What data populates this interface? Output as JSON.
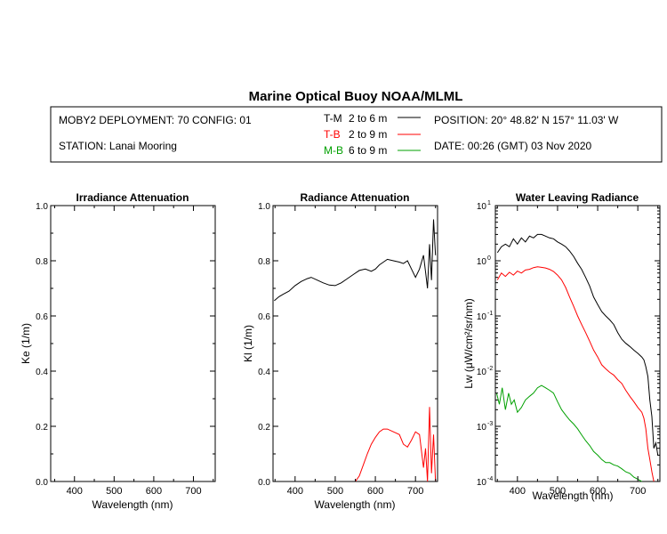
{
  "title": "Marine Optical Buoy NOAA/MLML",
  "header": {
    "deployment": "MOBY2 DEPLOYMENT: 70 CONFIG: 01",
    "station": "STATION: Lanai Mooring",
    "position": "POSITION: 20° 48.82' N   157° 11.03' W",
    "date": "DATE: 00:26 (GMT) 03 Nov 2020",
    "legend": [
      {
        "code": "T-M",
        "range": "2 to 6  m",
        "color": "#000000"
      },
      {
        "code": "T-B",
        "range": "2 to 9  m",
        "color": "#ff0000"
      },
      {
        "code": "M-B",
        "range": "6 to 9  m",
        "color": "#00a000"
      }
    ]
  },
  "chart_data": [
    {
      "type": "line",
      "title": "Irradiance Attenuation",
      "xlabel": "Wavelength (nm)",
      "ylabel": "Ke  (1/m)",
      "xlim": [
        340,
        755
      ],
      "ylim": [
        0.0,
        1.0
      ],
      "xticks": [
        "400",
        "500",
        "600",
        "700"
      ],
      "yticks": [
        "0.0",
        "0.2",
        "0.4",
        "0.6",
        "0.8",
        "1.0"
      ],
      "series": []
    },
    {
      "type": "line",
      "title": "Radiance Attenuation",
      "xlabel": "Wavelength (nm)",
      "ylabel": "Kl  (1/m)",
      "xlim": [
        345,
        755
      ],
      "ylim": [
        0.0,
        1.0
      ],
      "xticks": [
        "400",
        "500",
        "600",
        "700"
      ],
      "yticks": [
        "0.0",
        "0.2",
        "0.4",
        "0.6",
        "0.8",
        "1.0"
      ],
      "series": [
        {
          "code": "T-M",
          "color": "#000000",
          "x": [
            348,
            360,
            372,
            385,
            400,
            415,
            430,
            440,
            455,
            470,
            485,
            500,
            515,
            530,
            545,
            560,
            575,
            590,
            600,
            610,
            620,
            630,
            645,
            660,
            670,
            680,
            690,
            700,
            710,
            720,
            725,
            730,
            735,
            740,
            745,
            750
          ],
          "y": [
            0.655,
            0.67,
            0.68,
            0.69,
            0.71,
            0.725,
            0.735,
            0.74,
            0.73,
            0.72,
            0.712,
            0.71,
            0.72,
            0.735,
            0.75,
            0.765,
            0.77,
            0.762,
            0.77,
            0.785,
            0.795,
            0.805,
            0.8,
            0.795,
            0.79,
            0.8,
            0.77,
            0.74,
            0.77,
            0.82,
            0.76,
            0.7,
            0.86,
            0.73,
            0.95,
            0.82
          ]
        },
        {
          "code": "T-B",
          "color": "#ff0000",
          "x": [
            550,
            560,
            570,
            580,
            590,
            600,
            610,
            620,
            630,
            645,
            660,
            670,
            680,
            690,
            700,
            710,
            720,
            725,
            730,
            735,
            740,
            745,
            750
          ],
          "y": [
            0.0,
            0.02,
            0.06,
            0.1,
            0.135,
            0.16,
            0.18,
            0.19,
            0.19,
            0.18,
            0.17,
            0.135,
            0.125,
            0.15,
            0.18,
            0.17,
            0.05,
            0.12,
            0.0,
            0.27,
            0.03,
            0.17,
            0.0
          ]
        }
      ]
    },
    {
      "type": "line",
      "title": "Water Leaving Radiance",
      "xlabel": "Wavelength (nm)",
      "ylabel": "Lw  (μW/cm²/sr/nm)",
      "xlim": [
        345,
        755
      ],
      "ylim": [
        0.0001,
        10
      ],
      "yscale": "log",
      "xticks": [
        "400",
        "500",
        "600",
        "700"
      ],
      "yticks": [
        {
          "base": "10",
          "exp": "1",
          "value": 10
        },
        {
          "base": "10",
          "exp": "0",
          "value": 1
        },
        {
          "base": "10",
          "exp": "-1",
          "value": 0.1
        },
        {
          "base": "10",
          "exp": "-2",
          "value": 0.01
        },
        {
          "base": "10",
          "exp": "-3",
          "value": 0.001
        },
        {
          "base": "10",
          "exp": "-4",
          "value": 0.0001
        }
      ],
      "series": [
        {
          "code": "T-M",
          "color": "#000000",
          "x": [
            350,
            360,
            370,
            380,
            390,
            400,
            410,
            420,
            430,
            440,
            450,
            460,
            470,
            480,
            490,
            500,
            510,
            520,
            530,
            540,
            550,
            560,
            570,
            580,
            590,
            600,
            610,
            620,
            630,
            640,
            650,
            660,
            670,
            680,
            690,
            700,
            710,
            715,
            720,
            725,
            730,
            735,
            740,
            745,
            750
          ],
          "y": [
            1.4,
            1.8,
            2.0,
            1.8,
            2.5,
            2.0,
            2.6,
            2.2,
            2.8,
            2.6,
            3.0,
            3.0,
            2.8,
            2.6,
            2.5,
            2.2,
            2.0,
            1.8,
            1.5,
            1.2,
            0.9,
            0.7,
            0.5,
            0.35,
            0.22,
            0.16,
            0.12,
            0.1,
            0.085,
            0.07,
            0.05,
            0.038,
            0.032,
            0.028,
            0.024,
            0.021,
            0.018,
            0.016,
            0.012,
            0.008,
            0.003,
            0.0015,
            0.0004,
            0.0005,
            0.0003
          ]
        },
        {
          "code": "T-B",
          "color": "#ff0000",
          "x": [
            350,
            360,
            370,
            380,
            390,
            400,
            410,
            420,
            430,
            440,
            450,
            460,
            470,
            480,
            490,
            500,
            510,
            520,
            530,
            540,
            550,
            560,
            570,
            580,
            590,
            600,
            610,
            620,
            630,
            640,
            650,
            660,
            670,
            680,
            690,
            700,
            710,
            715,
            720,
            725,
            730,
            735,
            740
          ],
          "y": [
            0.45,
            0.6,
            0.52,
            0.62,
            0.55,
            0.65,
            0.6,
            0.68,
            0.7,
            0.75,
            0.78,
            0.76,
            0.74,
            0.7,
            0.64,
            0.55,
            0.45,
            0.33,
            0.22,
            0.15,
            0.1,
            0.07,
            0.05,
            0.035,
            0.024,
            0.018,
            0.013,
            0.011,
            0.0095,
            0.0085,
            0.007,
            0.006,
            0.0045,
            0.0035,
            0.0028,
            0.0022,
            0.0018,
            0.0014,
            0.0009,
            0.0004,
            0.00025,
            0.00015,
            0.0001
          ]
        },
        {
          "code": "M-B",
          "color": "#00a000",
          "x": [
            348,
            355,
            362,
            370,
            378,
            385,
            392,
            400,
            410,
            420,
            430,
            440,
            450,
            460,
            470,
            480,
            490,
            500,
            510,
            520,
            530,
            540,
            550,
            560,
            570,
            580,
            590,
            600,
            610,
            620,
            630,
            640,
            650,
            660,
            670,
            680,
            690,
            700,
            710
          ],
          "y": [
            0.004,
            0.0025,
            0.005,
            0.002,
            0.004,
            0.0025,
            0.003,
            0.0018,
            0.0022,
            0.003,
            0.0035,
            0.004,
            0.005,
            0.0055,
            0.005,
            0.0045,
            0.004,
            0.0028,
            0.002,
            0.0016,
            0.0013,
            0.0011,
            0.0009,
            0.0007,
            0.00055,
            0.00045,
            0.00035,
            0.0003,
            0.00025,
            0.00022,
            0.00022,
            0.0002,
            0.00019,
            0.00017,
            0.00015,
            0.00014,
            0.00012,
            0.00011,
            0.0001
          ]
        }
      ]
    }
  ]
}
